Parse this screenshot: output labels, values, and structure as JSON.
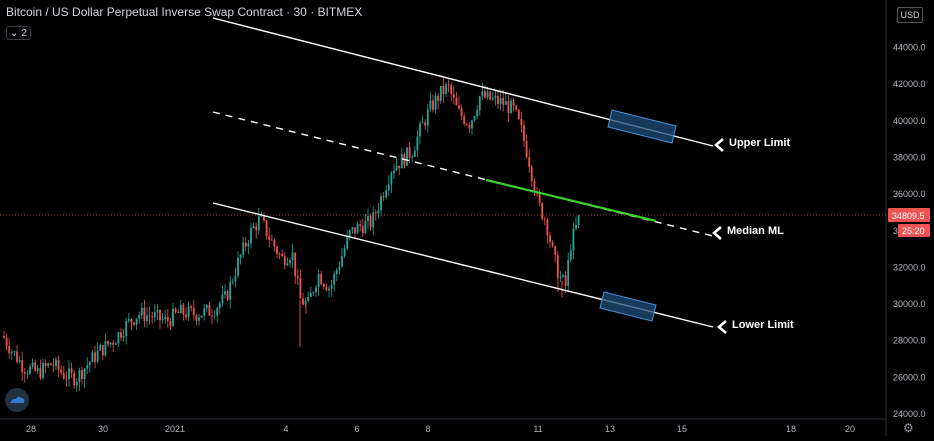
{
  "header": {
    "symbol": "Bitcoin / US Dollar Perpetual Inverse Swap Contract",
    "interval": "30",
    "exchange": "BITMEX",
    "separator": "·",
    "collapse_count": "2"
  },
  "price_scale": {
    "currency_button": "USD"
  },
  "chart_data": {
    "type": "candlestick",
    "y_ticks": [
      "24000.0",
      "26000.0",
      "28000.0",
      "30000.0",
      "32000.0",
      "34000.0",
      "36000.0",
      "38000.0",
      "40000.0",
      "42000.0",
      "44000.0"
    ],
    "x_ticks": [
      "28",
      "30",
      "2021",
      "4",
      "6",
      "8",
      "11",
      "13",
      "15",
      "18",
      "20"
    ],
    "ylim": [
      24000,
      45000
    ],
    "last_price": "34809.5",
    "countdown": "25:20",
    "last_price_line": 34809.5,
    "pitchfork": {
      "upper_label": "Upper Limit",
      "median_label": "Median ML",
      "lower_label": "Lower Limit"
    },
    "colors": {
      "up": "#26a69a",
      "down": "#ef5350",
      "median_highlight": "#3ad12a",
      "box_fill": "#1f4e79",
      "box_stroke": "#4a90d9",
      "price_label": "#ef5350"
    }
  }
}
